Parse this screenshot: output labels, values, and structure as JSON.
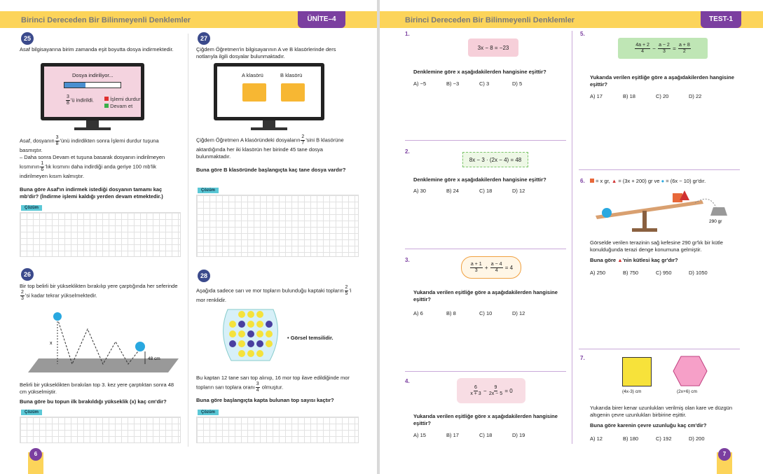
{
  "left_page": {
    "header": {
      "title": "Birinci Dereceden Bir Bilinmeyenli Denklemler",
      "unit": "ÜNİTE–4"
    },
    "page_number": "6",
    "p25": {
      "number": "25",
      "intro": "Asaf bilgisayarına birim zamanda eşit boyutta dosya indirmektedir.",
      "screen": {
        "status": "Dosya indiriliyor...",
        "frac": {
          "num": "3",
          "den": "8"
        },
        "suffix": "'ü indirildi.",
        "options": [
          "İşlemi durdur",
          "Devam et"
        ]
      },
      "t1_pre": "Asaf, dosyanın",
      "t1_frac": {
        "num": "3",
        "den": "8"
      },
      "t1_post": "'ünü indirdikten sonra İşlemi durdur tuşuna basmıştır.",
      "t2_pre": "– Daha sonra Devam et tuşuna basarak dosyanın indirilmeyen kısmının",
      "t2_frac": {
        "num": "1",
        "den": "6"
      },
      "t2_post": "'lık kısmını daha indirdiği anda geriye 100 mb'lik indirilmeyen kısım kalmıştır.",
      "question": "Buna göre Asaf'ın indirmek istediği dosyanın tamamı kaç mb'dir? (İndirme işlemi kaldığı yerden devam etmektedir.)",
      "solution": "Çözüm"
    },
    "p26": {
      "number": "26",
      "t1_pre": "Bir top belirli bir yükseklikten bırakılıp yere çarptığında her seferinde",
      "frac": {
        "num": "2",
        "den": "3"
      },
      "t1_post": "'si kadar tekrar yükselmektedir.",
      "x_label": "x",
      "h_label": "48 cm",
      "t2": "Belirli bir yükseklikten bırakılan top 3. kez yere çarptıktan sonra 48 cm yükselmiştir.",
      "question": "Buna göre bu topun ilk bırakıldığı yükseklik (x) kaç cm'dir?",
      "solution": "Çözüm"
    },
    "p27": {
      "number": "27",
      "intro": "Çiğdem Öğretmen'in bilgisayarının A ve B klasörlerinde ders notlarıyla ilgili dosyalar bulunmaktadır.",
      "folders": [
        "A klasörü",
        "B klasörü"
      ],
      "t1_pre": "Çiğdem Öğretmen A klasöründeki dosyaların",
      "frac": {
        "num": "2",
        "den": "7"
      },
      "t1_post": "'sini B klasörüne aktardığında her iki klasörün her birinde 45 tane dosya bulunmaktadır.",
      "question": "Buna göre B klasöründe başlangıçta kaç tane dosya vardır?",
      "solution": "Çözüm"
    },
    "p28": {
      "number": "28",
      "t1_pre": "Aşağıda sadece sarı ve mor topların bulunduğu kaptaki topların",
      "frac": {
        "num": "2",
        "den": "5"
      },
      "t1_post": "'i mor renklidir.",
      "note": "• Görsel temsilidir.",
      "t2_pre": "Bu kaptan 12 tane sarı top alınıp, 16 mor top ilave edildiğinde mor topların sarı toplara oranı",
      "frac2": {
        "num": "3",
        "den": "4"
      },
      "t2_post": "olmuştur.",
      "question": "Buna göre başlangıçta kapta bulunan top sayısı kaçtır?",
      "solution": "Çözüm"
    }
  },
  "right_page": {
    "header": {
      "title": "Birinci Dereceden Bir Bilinmeyenli Denklemler",
      "test": "TEST-1"
    },
    "page_number": "7",
    "q1": {
      "number": "1.",
      "equation": "3x − 8 = −23",
      "question": "Denklemine göre x aşağıdakilerden hangisine eşittir?",
      "options": [
        "A) −5",
        "B) −3",
        "C) 3",
        "D) 5"
      ]
    },
    "q2": {
      "number": "2.",
      "equation": "8x − 3 · (2x − 4) = 48",
      "question": "Denklemine göre x aşağıdakilerden hangisine eşittir?",
      "options": [
        "A) 30",
        "B) 24",
        "C) 18",
        "D) 12"
      ]
    },
    "q3": {
      "number": "3.",
      "f1": {
        "num": "a + 1",
        "den": "3"
      },
      "op": "+",
      "f2": {
        "num": "a − 4",
        "den": "4"
      },
      "rhs": "= 4",
      "question": "Yukarıda verilen eşitliğe göre a aşağıdakilerden hangisine eşittir?",
      "options": [
        "A) 6",
        "B) 8",
        "C) 10",
        "D) 12"
      ]
    },
    "q4": {
      "number": "4.",
      "f1": {
        "num": "6",
        "den": "x + 3"
      },
      "op": "−",
      "f2": {
        "num": "9",
        "den": "2x − 5"
      },
      "rhs": "= 0",
      "question": "Yukarıda verilen eşitliğe göre x aşağıdakilerden hangisine eşittir?",
      "options": [
        "A) 15",
        "B) 17",
        "C) 18",
        "D) 19"
      ]
    },
    "q5": {
      "number": "5.",
      "f1": {
        "num": "4a + 2",
        "den": "4"
      },
      "op": "−",
      "f2": {
        "num": "a − 2",
        "den": "3"
      },
      "eq": "=",
      "f3": {
        "num": "a + 8",
        "den": "2"
      },
      "question": "Yukarıda verilen eşitliğe göre a aşağıdakilerden hangisine eşittir?",
      "options": [
        "A) 17",
        "B) 18",
        "C) 20",
        "D) 22"
      ]
    },
    "q6": {
      "number": "6.",
      "square": "= x gr,",
      "triangle": "= (3x + 200) gr",
      "and": "ve",
      "circle": "= (6x − 10) gr'dır.",
      "weight": "290 gr",
      "text": "Görselde verilen terazinin sağ kefesine 290 gr'lık bir kütle konulduğunda terazi denge konumuna gelmiştir.",
      "q_pre": "Buna göre",
      "q_post": "'nin kütlesi kaç gr'dır?",
      "options": [
        "A) 250",
        "B) 750",
        "C) 950",
        "D) 1050"
      ]
    },
    "q7": {
      "number": "7.",
      "square_label": "(4x-3) cm",
      "hexagon_label": "(2x+6) cm",
      "text": "Yukarıda birer kenar uzunlukları verilmiş olan kare ve düzgün altıgenin çevre uzunlukları birbirine eşittir.",
      "question": "Buna göre karenin çevre uzunluğu kaç cm'dir?",
      "options": [
        "A) 12",
        "B) 180",
        "C) 192",
        "D) 200"
      ]
    }
  }
}
